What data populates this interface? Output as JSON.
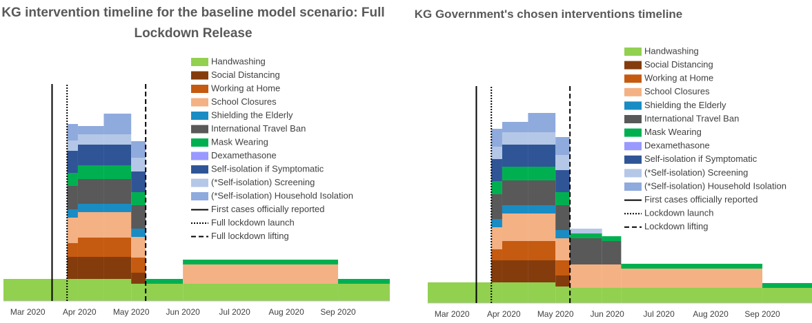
{
  "chart_data": [
    {
      "type": "step-stack",
      "title": "KG intervention timeline for the baseline model scenario: Full Lockdown Release",
      "x": [
        2.53,
        3.76,
        3.97,
        4.47,
        5.0,
        5.28,
        6.0,
        9.0,
        10.0
      ],
      "xlim": [
        2.53,
        10.0
      ],
      "xticks": [
        {
          "value": 3,
          "label": "Mar 2020"
        },
        {
          "value": 4,
          "label": "Apr 2020"
        },
        {
          "value": 5,
          "label": "May 2020"
        },
        {
          "value": 6,
          "label": "Jun 2020"
        },
        {
          "value": 7,
          "label": "Jul 2020"
        },
        {
          "value": 8,
          "label": "Aug 2020"
        },
        {
          "value": 9,
          "label": "Sep 2020"
        }
      ],
      "ylim": [
        0,
        37
      ],
      "series": [
        {
          "name": "Handwashing",
          "color": "#92d050",
          "values": [
            3.2,
            3.2,
            3.2,
            3.2,
            2.5,
            2.5,
            2.5,
            2.5,
            null
          ]
        },
        {
          "name": "Social Distancing",
          "color": "#843c0c",
          "values": [
            0,
            3.2,
            3.2,
            3.2,
            1.6,
            0,
            0,
            0,
            null
          ]
        },
        {
          "name": "Working at Home",
          "color": "#c55a11",
          "values": [
            0,
            2.0,
            2.8,
            2.8,
            2.2,
            0,
            0,
            0,
            null
          ]
        },
        {
          "name": "School Closures",
          "color": "#f4b183",
          "values": [
            0,
            3.7,
            3.7,
            3.7,
            3.0,
            0,
            2.8,
            0,
            null
          ]
        },
        {
          "name": "Shielding the Elderly",
          "color": "#1a8cc4",
          "values": [
            0,
            1.2,
            1.2,
            1.2,
            1.2,
            0,
            0,
            0,
            null
          ]
        },
        {
          "name": "International Travel Ban",
          "color": "#595959",
          "values": [
            0,
            3.4,
            3.6,
            3.6,
            3.4,
            0,
            0,
            0,
            null
          ]
        },
        {
          "name": "Mask Wearing",
          "color": "#00b050",
          "values": [
            0,
            1.9,
            2.0,
            2.0,
            1.9,
            0.7,
            0.7,
            0.7,
            null
          ]
        },
        {
          "name": "Dexamethasone",
          "color": "#9999ff",
          "values": [
            0,
            0,
            0,
            0,
            0,
            0,
            0,
            0,
            null
          ]
        },
        {
          "name": "Self-isolation if Symptomatic",
          "color": "#2f5597",
          "values": [
            0,
            3.2,
            3.0,
            3.0,
            3.0,
            0,
            0,
            0,
            null
          ]
        },
        {
          "name": "(*Self-isolation) Screening",
          "color": "#b4c7e7",
          "values": [
            0,
            1.5,
            1.5,
            1.5,
            2.0,
            0,
            0,
            0,
            null
          ]
        },
        {
          "name": "(*Self-isolation) Household Isolation",
          "color": "#8faadc",
          "values": [
            0,
            2.4,
            1.2,
            3.0,
            2.4,
            0,
            0,
            0,
            null
          ]
        }
      ],
      "vlines": [
        {
          "name": "First cases officially reported",
          "x": 3.47,
          "dash": "solid"
        },
        {
          "name": "Full lockdown launch",
          "x": 3.76,
          "dash": "dotted"
        },
        {
          "name": "Full lockdown lifting",
          "x": 5.28,
          "dash": "dashed"
        }
      ]
    },
    {
      "type": "step-stack",
      "title": "KG Government's chosen interventions timeline",
      "x": [
        2.53,
        3.76,
        3.97,
        4.47,
        5.0,
        5.28,
        5.9,
        6.27,
        9.0,
        9.96
      ],
      "xlim": [
        2.53,
        9.96
      ],
      "xticks": [
        {
          "value": 3,
          "label": "Mar 2020"
        },
        {
          "value": 4,
          "label": "Apr 2020"
        },
        {
          "value": 5,
          "label": "May 2020"
        },
        {
          "value": 6,
          "label": "Jun 2020"
        },
        {
          "value": 7,
          "label": "Jul 2020"
        },
        {
          "value": 8,
          "label": "Aug 2020"
        },
        {
          "value": 9,
          "label": "Sep 2020"
        }
      ],
      "ylim": [
        0,
        37
      ],
      "series": [
        {
          "name": "Handwashing",
          "color": "#92d050",
          "values": [
            3.0,
            3.0,
            3.0,
            3.0,
            2.4,
            2.2,
            2.2,
            2.2,
            2.2,
            null
          ]
        },
        {
          "name": "Social Distancing",
          "color": "#843c0c",
          "values": [
            0,
            3.2,
            3.2,
            3.2,
            1.6,
            0,
            0,
            0,
            0,
            null
          ]
        },
        {
          "name": "Working at Home",
          "color": "#c55a11",
          "values": [
            0,
            1.6,
            2.8,
            2.8,
            2.2,
            0,
            0,
            0,
            0,
            null
          ]
        },
        {
          "name": "School Closures",
          "color": "#f4b183",
          "values": [
            0,
            3.2,
            4.0,
            4.0,
            3.2,
            3.4,
            3.4,
            2.8,
            0,
            null
          ]
        },
        {
          "name": "Shielding the Elderly",
          "color": "#1a8cc4",
          "values": [
            0,
            1.2,
            1.2,
            1.2,
            1.2,
            0,
            0,
            0,
            0,
            null
          ]
        },
        {
          "name": "International Travel Ban",
          "color": "#595959",
          "values": [
            0,
            3.6,
            3.6,
            3.6,
            3.6,
            3.8,
            3.4,
            0,
            0,
            null
          ]
        },
        {
          "name": "Mask Wearing",
          "color": "#00b050",
          "values": [
            0,
            1.9,
            2.0,
            2.0,
            1.9,
            0.7,
            0.7,
            0.7,
            0.7,
            null
          ]
        },
        {
          "name": "Dexamethasone",
          "color": "#9999ff",
          "values": [
            0,
            0,
            0,
            0,
            0,
            0,
            0,
            0,
            0,
            null
          ]
        },
        {
          "name": "Self-isolation if Symptomatic",
          "color": "#2f5597",
          "values": [
            0,
            3.2,
            3.2,
            3.2,
            3.2,
            0,
            0,
            0,
            0,
            null
          ]
        },
        {
          "name": "(*Self-isolation) Screening",
          "color": "#b4c7e7",
          "values": [
            0,
            1.8,
            1.8,
            1.8,
            2.2,
            0.7,
            0,
            0,
            0,
            null
          ]
        },
        {
          "name": "(*Self-isolation) Household Isolation",
          "color": "#8faadc",
          "values": [
            0,
            2.6,
            1.5,
            2.8,
            2.6,
            0,
            0,
            0,
            0,
            null
          ]
        }
      ],
      "vlines": [
        {
          "name": "First cases officially reported",
          "x": 3.47,
          "dash": "solid"
        },
        {
          "name": "Lockdown launch",
          "x": 3.76,
          "dash": "dotted"
        },
        {
          "name": "Lockdown lifting",
          "x": 5.28,
          "dash": "dashed"
        }
      ]
    }
  ]
}
